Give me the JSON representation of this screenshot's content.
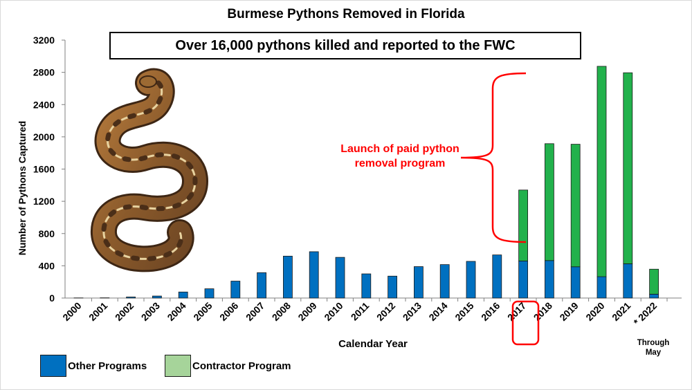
{
  "chart_data": {
    "type": "bar",
    "stacked": true,
    "title": "Burmese Pythons Removed in Florida",
    "subtitle": "Over 16,000 pythons killed and reported to the FWC",
    "xlabel": "Calendar Year",
    "ylabel": "Number of  Pythons Captured",
    "ylim": [
      0,
      3200
    ],
    "yticks": [
      0,
      400,
      800,
      1200,
      1600,
      2000,
      2400,
      2800,
      3200
    ],
    "grid": false,
    "legend_position": "bottom-left",
    "categories": [
      "2000",
      "2001",
      "2002",
      "2003",
      "2004",
      "2005",
      "2006",
      "2007",
      "2008",
      "2009",
      "2010",
      "2011",
      "2012",
      "2013",
      "2014",
      "2015",
      "2016",
      "2017",
      "2018",
      "2019",
      "2020",
      "2021",
      "* 2022"
    ],
    "series": [
      {
        "name": "Other Programs",
        "color": "#0070c0",
        "values": [
          2,
          3,
          13,
          25,
          75,
          115,
          210,
          315,
          520,
          575,
          505,
          300,
          272,
          390,
          415,
          455,
          535,
          460,
          465,
          388,
          265,
          425,
          48
        ]
      },
      {
        "name": "Contractor Program",
        "color": "#22b14c",
        "values": [
          0,
          0,
          0,
          0,
          0,
          0,
          0,
          0,
          0,
          0,
          0,
          0,
          0,
          0,
          0,
          0,
          0,
          880,
          1450,
          1520,
          2610,
          2370,
          310
        ]
      }
    ],
    "legend_swatch_colors": {
      "other": "#0070c0",
      "contractor": "#a6d49a"
    },
    "annotation": {
      "text_line1": "Launch of paid python",
      "text_line2": "removal program",
      "color": "#ff0000"
    },
    "highlight_category": "2017",
    "footnote_line1": "Through",
    "footnote_line2": "May"
  },
  "legend": {
    "other_label": "Other Programs",
    "contractor_label": "Contractor Program"
  }
}
